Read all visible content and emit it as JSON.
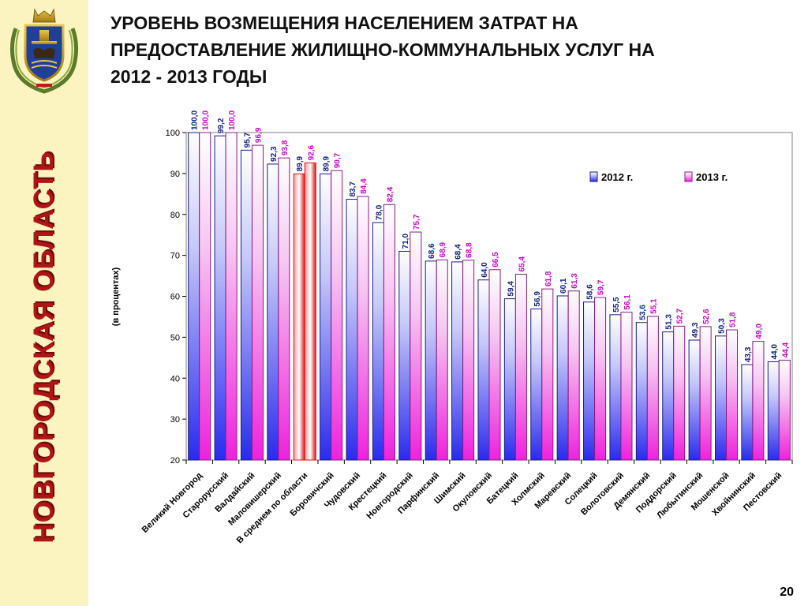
{
  "header": {
    "vertical_title": "НОВГОРОДСКАЯ ОБЛАСТЬ",
    "title_lines": [
      "УРОВЕНЬ ВОЗМЕЩЕНИЯ НАСЕЛЕНИЕМ ЗАТРАТ НА",
      "ПРЕДОСТАВЛЕНИЕ ЖИЛИЩНО-КОММУНАЛЬНЫХ УСЛУГ НА",
      "2012 - 2013 ГОДЫ"
    ]
  },
  "footer": {
    "page_number": "20"
  },
  "colors": {
    "series_2012": "#2a2aee",
    "series_2013": "#ee22dd",
    "average_bar": "#dd1111",
    "label_2012": "#102080",
    "label_2013": "#cc00cc",
    "title_red": "#b01515"
  },
  "chart_data": {
    "type": "bar",
    "ylabel": "(в процентах)",
    "ylim": [
      20,
      100
    ],
    "yticks": [
      20,
      30,
      40,
      50,
      60,
      70,
      80,
      90,
      100
    ],
    "legend_position": "top-right",
    "highlight_category": "В среднем по области",
    "categories": [
      "Великий Новгород",
      "Старорусский",
      "Валдайский",
      "Маловишерский",
      "В среднем по области",
      "Боровичский",
      "Чудовский",
      "Крестецкий",
      "Новгородский",
      "Парфинский",
      "Шимский",
      "Окуловский",
      "Батецкий",
      "Холмский",
      "Маревский",
      "Солецкий",
      "Волотовский",
      "Демянский",
      "Поддорский",
      "Любытинский",
      "Мошенской",
      "Хвойнинский",
      "Пестовский"
    ],
    "series": [
      {
        "name": "2012 г.",
        "values": [
          100.0,
          99.2,
          95.7,
          92.3,
          89.9,
          89.9,
          83.7,
          78.0,
          71.0,
          68.6,
          68.4,
          64.0,
          59.4,
          56.9,
          60.1,
          58.6,
          55.5,
          53.6,
          51.3,
          49.3,
          50.3,
          43.3,
          44.0
        ],
        "labels": [
          "100,0",
          "99,2",
          "95,7",
          "92,3",
          "89,9",
          "89,9",
          "83,7",
          "78,0",
          "71,0",
          "68,6",
          "68,4",
          "64,0",
          "59,4",
          "56,9",
          "60,1",
          "58,6",
          "55,5",
          "53,6",
          "51,3",
          "49,3",
          "50,3",
          "43,3",
          "44,0"
        ]
      },
      {
        "name": "2013 г.",
        "values": [
          100.0,
          100.0,
          96.9,
          93.8,
          92.6,
          90.7,
          84.4,
          82.4,
          75.7,
          68.9,
          68.8,
          66.5,
          65.4,
          61.8,
          61.3,
          59.7,
          56.1,
          55.1,
          52.7,
          52.6,
          51.8,
          49.0,
          44.4
        ],
        "labels": [
          "100,0",
          "100,0",
          "96,9",
          "93,8",
          "92,6",
          "90,7",
          "84,4",
          "82,4",
          "75,7",
          "68,9",
          "68,8",
          "66,5",
          "65,4",
          "61,8",
          "61,3",
          "59,7",
          "56,1",
          "55,1",
          "52,7",
          "52,6",
          "51,8",
          "49,0",
          "44,4"
        ]
      }
    ]
  }
}
